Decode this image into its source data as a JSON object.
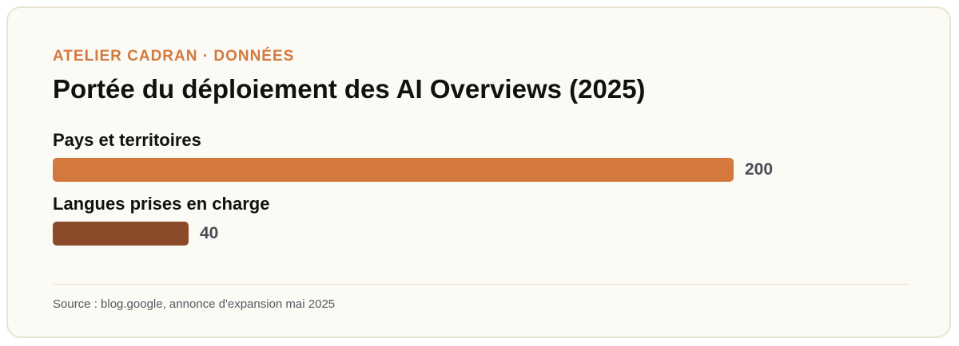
{
  "header": {
    "kicker": "ATELIER CADRAN · DONNÉES",
    "title": "Portée du déploiement des AI Overviews (2025)"
  },
  "chart_data": {
    "type": "bar",
    "orientation": "horizontal",
    "categories": [
      "Pays et territoires",
      "Langues prises en charge"
    ],
    "values": [
      200,
      40
    ],
    "value_labels": [
      "200",
      "40"
    ],
    "colors": [
      "#d3793d",
      "#8b4a29"
    ],
    "xlim": [
      0,
      200
    ],
    "grid": false
  },
  "footer": {
    "source": "Source : blog.google, annonce d'expansion mai 2025"
  }
}
